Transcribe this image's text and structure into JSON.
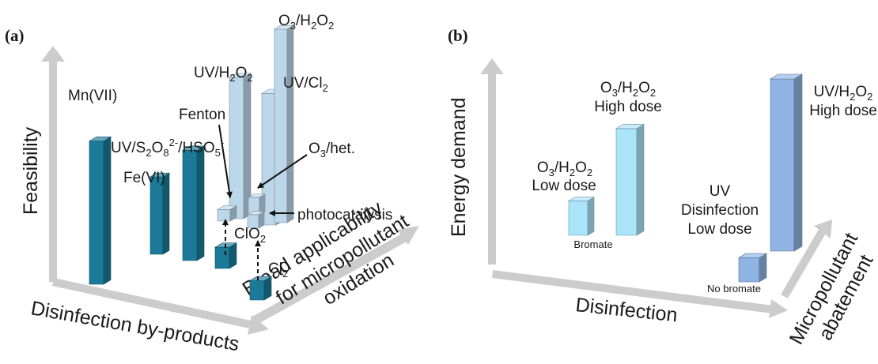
{
  "chart_data": [
    {
      "type": "bar",
      "panel": "(a)",
      "axes": {
        "y": "Feasibility",
        "x": "Disinfection by-products",
        "z": [
          "Broad applicability",
          "for micropollutant",
          "oxidation"
        ]
      },
      "bars": [
        {
          "label": "Mn(VII)",
          "value": 0.74
        },
        {
          "label": "Fe(VI)",
          "value": 0.4
        },
        {
          "label": "UV/S2O8 2-/HSO5 -",
          "value": 0.57
        },
        {
          "label": "ClO2",
          "value": 0.11
        },
        {
          "label": "Cl2",
          "value": 0.1
        },
        {
          "label": "Fenton",
          "value": 0.06
        },
        {
          "label": "photocatalysis",
          "value": 0.07
        },
        {
          "label": "O3/het.",
          "value": 0.09
        },
        {
          "label": "UV/H2O2",
          "value": 0.73
        },
        {
          "label": "UV/Cl2",
          "value": 0.68
        },
        {
          "label": "O3/H2O2",
          "value": 1.0
        }
      ],
      "labels": {
        "mn": "Mn(VII)",
        "fe": "Fe(VI)",
        "fenton": "Fenton",
        "photo": "photocatalysis",
        "o3het": "O3/het.",
        "clo2": "ClO2",
        "cl2": "Cl2"
      },
      "colors": {
        "dark": "#1a7a98",
        "light": "#bdd7ea"
      }
    },
    {
      "type": "bar",
      "panel": "(b)",
      "axes": {
        "y": "Energy demand",
        "x": "Disinfection",
        "z": [
          "Micropollutant",
          "abatement"
        ]
      },
      "bars": [
        {
          "label": "O3/H2O2 Low dose",
          "value": 0.2,
          "note": "Bromate"
        },
        {
          "label": "O3/H2O2 High dose",
          "value": 0.62
        },
        {
          "label": "UV Disinfection Low dose",
          "value": 0.14,
          "note": "No bromate"
        },
        {
          "label": "UV/H2O2 High dose",
          "value": 1.0
        }
      ],
      "labels": {
        "o3_low_line2": "Low dose",
        "o3_high_line2": "High dose",
        "uv_line1": "UV",
        "uv_line2": "Disinfection",
        "uv_line3": "Low dose",
        "uvh_line2": "High dose",
        "bromate": "Bromate",
        "no_bromate": "No bromate"
      },
      "colors": {
        "cyan": "#a9e4f9",
        "blue": "#8fb3e3"
      }
    }
  ]
}
